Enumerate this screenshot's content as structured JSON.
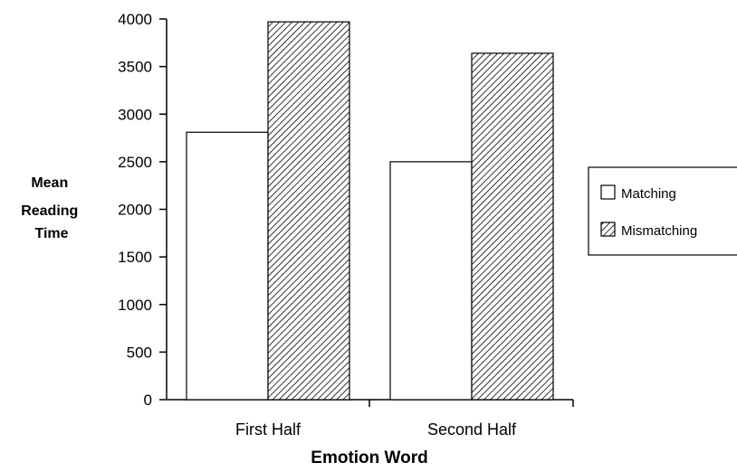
{
  "chart_data": {
    "type": "bar",
    "categories": [
      "First Half",
      "Second Half"
    ],
    "series": [
      {
        "name": "Matching",
        "values": [
          2810,
          2500
        ],
        "fill": "#ffffff"
      },
      {
        "name": "Mismatching",
        "values": [
          3970,
          3640
        ],
        "fill": "hatched"
      }
    ],
    "xlabel": "Emotion Word",
    "ylabel_lines": [
      "Mean",
      "Reading",
      "Time"
    ],
    "ylim": [
      0,
      4000
    ],
    "yticks": [
      0,
      500,
      1000,
      1500,
      2000,
      2500,
      3000,
      3500,
      4000
    ],
    "grid": false,
    "legend_position": "right"
  }
}
